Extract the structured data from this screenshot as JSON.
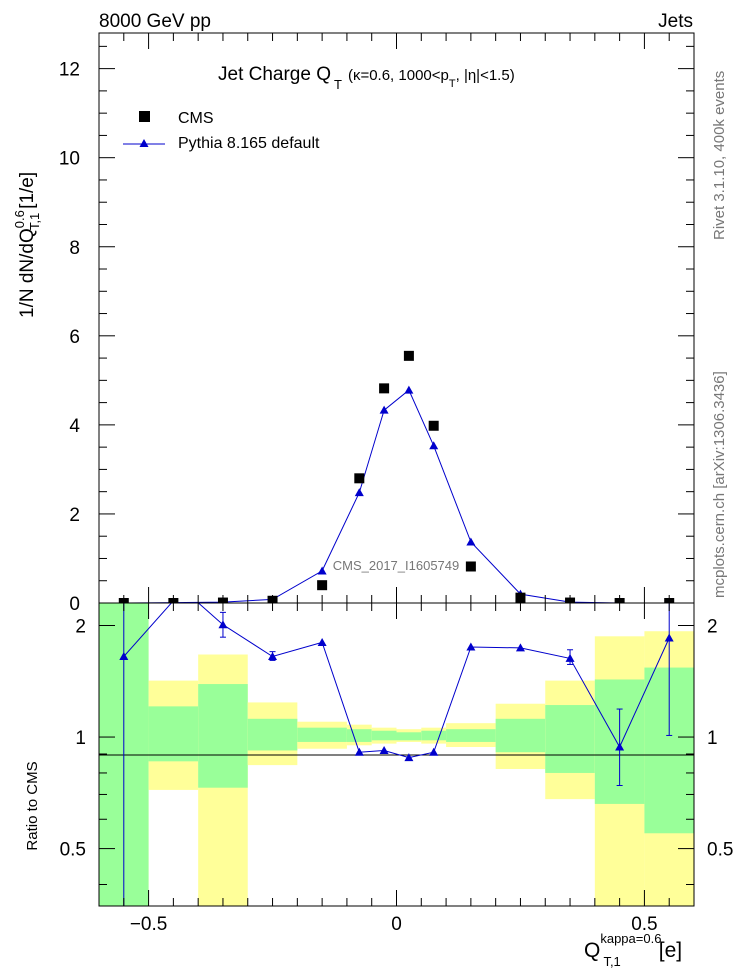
{
  "header": {
    "left": "8000 GeV pp",
    "right": "Jets",
    "side_top": "Rivet 3.1.10,  400k events",
    "side_bottom": "mcplots.cern.ch [arXiv:1306.3436]",
    "watermark": "CMS_2017_I1605749"
  },
  "colors": {
    "cms": "#000000",
    "mc": "#0000cc",
    "band_outer": "#ffff99",
    "band_inner": "#99ff99"
  },
  "chart_data": [
    {
      "type": "scatter",
      "title": "Jet Charge Q_T (κ=0.6, 1000<p_T, |η|<1.5)",
      "title_main": "Jet Charge Q",
      "title_sub": "T",
      "title_rest": "(κ=0.6, 1000<p",
      "title_sub2": "T",
      "title_end": ", |η|<1.5)",
      "ylabel": "1/N dN/dQ^0.6_T,1 [1/e]",
      "ylabel_main": "1/N dN/dQ",
      "ylabel_sup": "0.6",
      "ylabel_sub": "T,1",
      "ylabel_unit": "[1/e]",
      "xlim": [
        -0.6,
        0.6
      ],
      "ylim": [
        0,
        12.8
      ],
      "y_ticks": [
        0,
        2,
        4,
        6,
        8,
        10,
        12
      ],
      "y_tick_labels": [
        "0",
        "2",
        "4",
        "6",
        "8",
        "10",
        "12"
      ],
      "legend": [
        "CMS",
        "Pythia 8.165 default"
      ],
      "legend_position": "top-left",
      "series": [
        {
          "name": "CMS",
          "x": [
            -0.55,
            -0.45,
            -0.35,
            -0.25,
            -0.15,
            -0.075,
            -0.025,
            0.025,
            0.075,
            0.15,
            0.25,
            0.35,
            0.45,
            0.55
          ],
          "values": [
            0.0,
            0.0,
            0.01,
            0.05,
            0.4,
            2.8,
            4.82,
            5.55,
            3.98,
            0.82,
            0.12,
            0.01,
            0.0,
            0.0
          ]
        },
        {
          "name": "Pythia 8.165 default",
          "x": [
            -0.55,
            -0.45,
            -0.35,
            -0.25,
            -0.15,
            -0.075,
            -0.025,
            0.025,
            0.075,
            0.15,
            0.25,
            0.35,
            0.45,
            0.55
          ],
          "values": [
            0.0,
            0.01,
            0.02,
            0.08,
            0.72,
            2.48,
            4.33,
            4.78,
            3.53,
            1.37,
            0.2,
            0.02,
            0.0,
            0.0
          ]
        }
      ]
    },
    {
      "type": "line",
      "ylabel": "Ratio to CMS",
      "xlabel": "Q^kappa=0.6_T,1 [e]",
      "xlabel_main": "Q",
      "xlabel_sup": "kappa=0.6",
      "xlabel_sub": "T,1",
      "xlabel_unit": "[e]",
      "xlim": [
        -0.6,
        0.6
      ],
      "ylim": [
        0.35,
        2.3
      ],
      "y_ticks": [
        0.5,
        1,
        2
      ],
      "y_tick_labels": [
        "0.5",
        "1",
        "2"
      ],
      "x_ticks": [
        -0.5,
        0,
        0.5
      ],
      "x_tick_labels": [
        "−0.5",
        "0",
        "0.5"
      ],
      "bins": [
        {
          "lo": -0.6,
          "hi": -0.5,
          "outer": [
            0.2,
            2.5
          ],
          "inner": [
            0.2,
            2.5
          ]
        },
        {
          "lo": -0.5,
          "hi": -0.4,
          "outer": [
            0.72,
            1.42
          ],
          "inner": [
            0.86,
            1.21
          ]
        },
        {
          "lo": -0.4,
          "hi": -0.3,
          "outer": [
            0.2,
            1.67
          ],
          "inner": [
            0.73,
            1.39
          ]
        },
        {
          "lo": -0.3,
          "hi": -0.2,
          "outer": [
            0.84,
            1.24
          ],
          "inner": [
            0.92,
            1.12
          ]
        },
        {
          "lo": -0.2,
          "hi": -0.1,
          "outer": [
            0.93,
            1.1
          ],
          "inner": [
            0.97,
            1.06
          ]
        },
        {
          "lo": -0.1,
          "hi": -0.05,
          "outer": [
            0.95,
            1.08
          ],
          "inner": [
            0.97,
            1.05
          ]
        },
        {
          "lo": -0.05,
          "hi": 0.0,
          "outer": [
            0.96,
            1.06
          ],
          "inner": [
            0.98,
            1.04
          ]
        },
        {
          "lo": 0.0,
          "hi": 0.05,
          "outer": [
            0.97,
            1.05
          ],
          "inner": [
            0.98,
            1.03
          ]
        },
        {
          "lo": 0.05,
          "hi": 0.1,
          "outer": [
            0.96,
            1.06
          ],
          "inner": [
            0.98,
            1.04
          ]
        },
        {
          "lo": 0.1,
          "hi": 0.2,
          "outer": [
            0.94,
            1.09
          ],
          "inner": [
            0.97,
            1.05
          ]
        },
        {
          "lo": 0.2,
          "hi": 0.3,
          "outer": [
            0.82,
            1.23
          ],
          "inner": [
            0.91,
            1.12
          ]
        },
        {
          "lo": 0.3,
          "hi": 0.4,
          "outer": [
            0.68,
            1.42
          ],
          "inner": [
            0.8,
            1.22
          ]
        },
        {
          "lo": 0.4,
          "hi": 0.5,
          "outer": [
            0.3,
            1.87
          ],
          "inner": [
            0.66,
            1.43
          ]
        },
        {
          "lo": 0.5,
          "hi": 0.6,
          "outer": [
            0.2,
            1.93
          ],
          "inner": [
            0.55,
            1.54
          ]
        }
      ],
      "series": [
        {
          "name": "Pythia 8.165 default",
          "x": [
            -0.55,
            -0.35,
            -0.25,
            -0.15,
            -0.075,
            -0.025,
            0.025,
            0.075,
            0.15,
            0.25,
            0.35,
            0.45,
            0.55
          ],
          "values": [
            1.65,
            2.01,
            1.65,
            1.8,
            0.91,
            0.92,
            0.88,
            0.91,
            1.75,
            1.74,
            1.63,
            0.94,
            1.85
          ],
          "err_lo": [
            0.2,
            1.86,
            1.61,
            1.8,
            0.91,
            0.92,
            0.88,
            0.91,
            1.75,
            1.74,
            1.57,
            0.74,
            1.01
          ],
          "err_hi": [
            2.3,
            2.17,
            1.7,
            1.8,
            0.91,
            0.92,
            0.88,
            0.91,
            1.75,
            1.74,
            1.72,
            1.19,
            2.3
          ]
        }
      ],
      "line_extra_x": [
        -0.43
      ],
      "line_extra_values": [
        2.5
      ]
    }
  ]
}
